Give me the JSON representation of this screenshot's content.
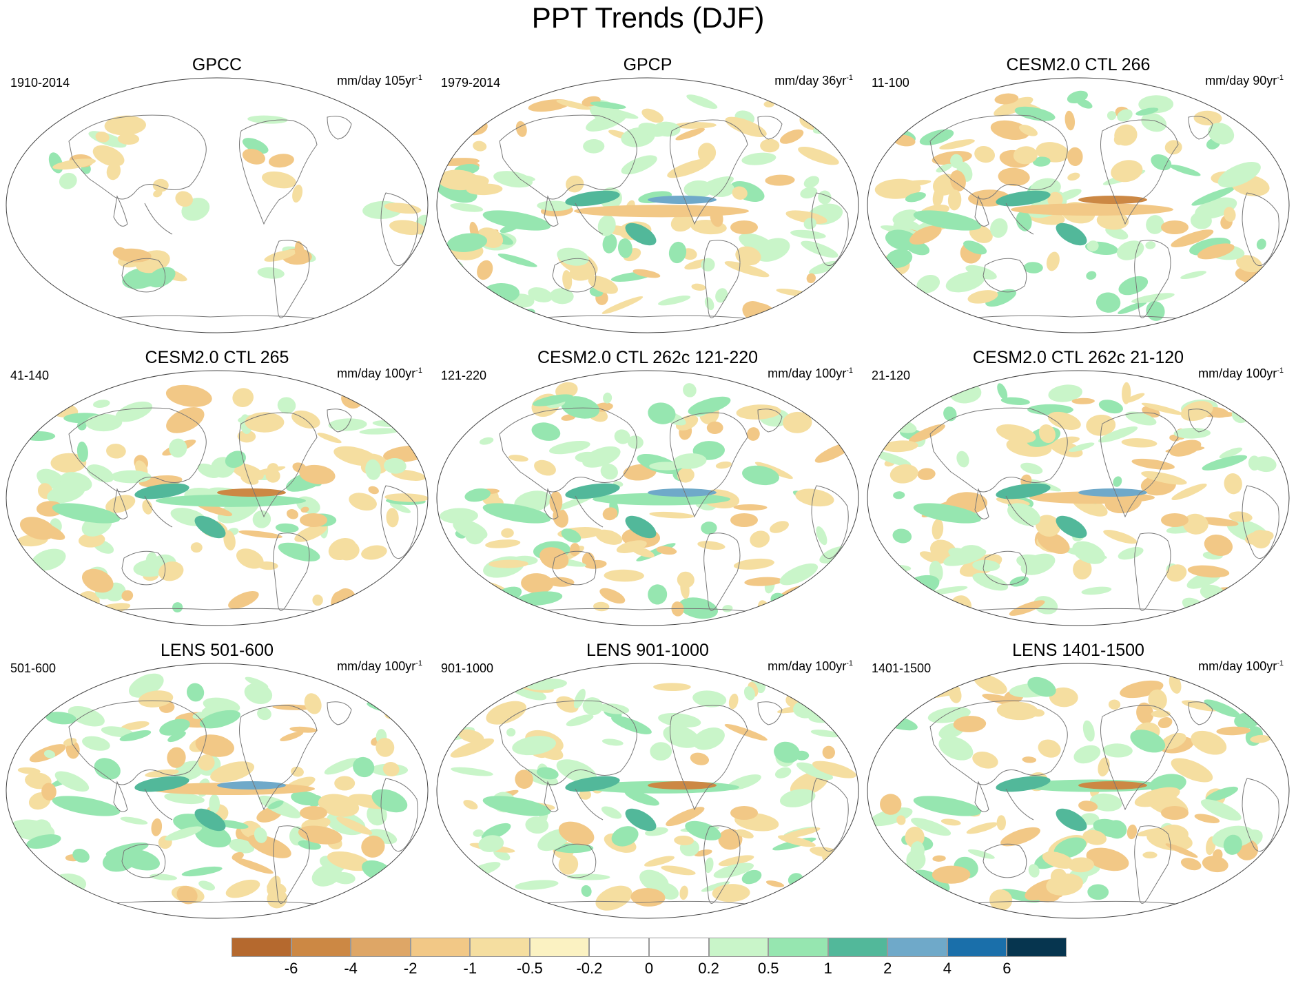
{
  "title": "PPT Trends (DJF)",
  "panels": [
    {
      "title": "GPCC",
      "period": "1910-2014",
      "units": "mm/day 105yr",
      "units_exp": "-1"
    },
    {
      "title": "GPCP",
      "period": "1979-2014",
      "units": "mm/day 36yr",
      "units_exp": "-1"
    },
    {
      "title": "CESM2.0 CTL 266",
      "period": "11-100",
      "units": "mm/day 90yr",
      "units_exp": "-1"
    },
    {
      "title": "CESM2.0 CTL 265",
      "period": "41-140",
      "units": "mm/day 100yr",
      "units_exp": "-1"
    },
    {
      "title": "CESM2.0 CTL 262c 121-220",
      "period": "121-220",
      "units": "mm/day 100yr",
      "units_exp": "-1"
    },
    {
      "title": "CESM2.0 CTL 262c 21-120",
      "period": "21-120",
      "units": "mm/day 100yr",
      "units_exp": "-1"
    },
    {
      "title": "LENS 501-600",
      "period": "501-600",
      "units": "mm/day 100yr",
      "units_exp": "-1"
    },
    {
      "title": "LENS 901-1000",
      "period": "901-1000",
      "units": "mm/day 100yr",
      "units_exp": "-1"
    },
    {
      "title": "LENS 1401-1500",
      "period": "1401-1500",
      "units": "mm/day 100yr",
      "units_exp": "-1"
    }
  ],
  "colorbar": {
    "labels": [
      "-6",
      "-4",
      "-2",
      "-1",
      "-0.5",
      "-0.2",
      "0",
      "0.2",
      "0.5",
      "1",
      "2",
      "4",
      "6"
    ],
    "colors": [
      "#b5692e",
      "#cc8844",
      "#dea666",
      "#f2c886",
      "#f5dea0",
      "#fbf2c2",
      "#ffffff",
      "#ffffff",
      "#c9f5c9",
      "#96e6b0",
      "#52b89a",
      "#6fa9c9",
      "#1a6faa",
      "#06354f"
    ]
  },
  "map_colors": {
    "dry_strong": "#cc8844",
    "dry": "#f2c886",
    "dry_weak": "#f5dea0",
    "wet_weak": "#c9f5c9",
    "wet": "#96e6b0",
    "wet_strong": "#52b89a",
    "wet_stronger": "#6fa9c9",
    "coastline": "#777777"
  }
}
